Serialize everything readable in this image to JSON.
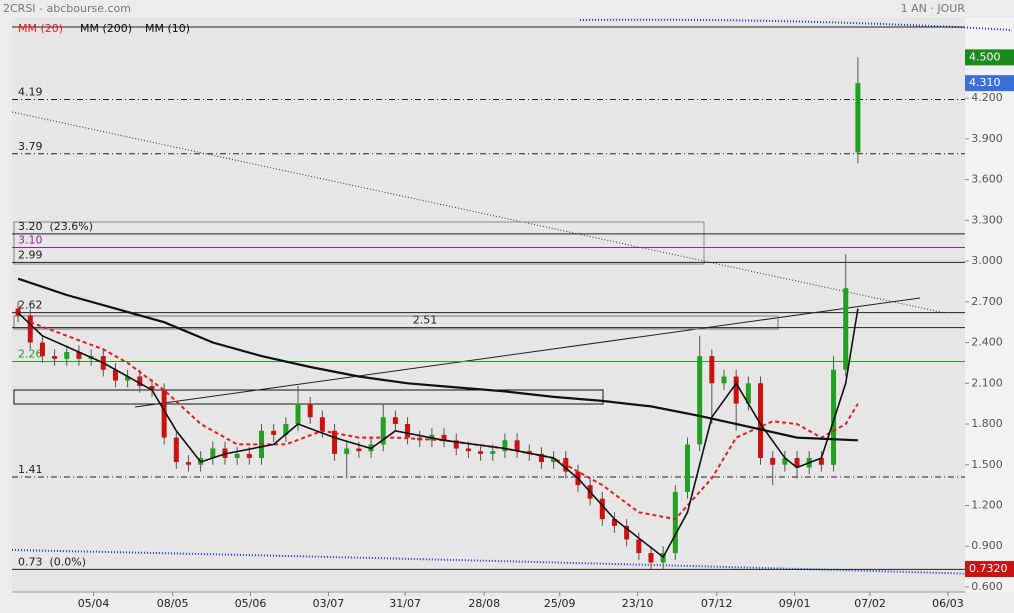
{
  "chart_data": {
    "type": "candlestick",
    "title": "2CRSI - abcbourse.com",
    "subtitle": "1 AN · JOUR",
    "xlim": [
      -0.5,
      77.8
    ],
    "xticks": [
      {
        "value": 6.2,
        "label": "05/04"
      },
      {
        "value": 12.7,
        "label": "08/05"
      },
      {
        "value": 19.1,
        "label": "05/06"
      },
      {
        "value": 25.5,
        "label": "03/07"
      },
      {
        "value": 31.8,
        "label": "31/07"
      },
      {
        "value": 38.3,
        "label": "28/08"
      },
      {
        "value": 44.5,
        "label": "25/09"
      },
      {
        "value": 50.9,
        "label": "23/10"
      },
      {
        "value": 57.4,
        "label": "07/12"
      },
      {
        "value": 63.8,
        "label": "09/01"
      },
      {
        "value": 70.0,
        "label": "07/02"
      },
      {
        "value": 76.4,
        "label": "06/03"
      }
    ],
    "ylim": [
      0.563,
      4.79
    ],
    "yticks": [
      {
        "value": 4.2,
        "label": "4.200"
      },
      {
        "value": 3.9,
        "label": "3.900"
      },
      {
        "value": 3.6,
        "label": "3.600"
      },
      {
        "value": 3.3,
        "label": "3.300"
      },
      {
        "value": 3.0,
        "label": "3.000"
      },
      {
        "value": 2.7,
        "label": "2.700"
      },
      {
        "value": 2.4,
        "label": "2.400"
      },
      {
        "value": 2.1,
        "label": "2.100"
      },
      {
        "value": 1.8,
        "label": "1.800"
      },
      {
        "value": 1.5,
        "label": "1.500"
      },
      {
        "value": 1.2,
        "label": "1.200"
      },
      {
        "value": 0.9,
        "label": "0.900"
      },
      {
        "value": 0.6,
        "label": "0.600"
      }
    ],
    "up_color": "#22a022",
    "down_color": "#cc1111",
    "open": [
      2.65,
      2.6,
      2.4,
      2.3,
      2.28,
      2.33,
      2.28,
      2.3,
      2.2,
      2.12,
      2.15,
      2.08,
      2.05,
      1.7,
      1.52,
      1.5,
      1.55,
      1.62,
      1.55,
      1.58,
      1.55,
      1.75,
      1.72,
      1.8,
      1.95,
      1.85,
      1.75,
      1.58,
      1.62,
      1.6,
      1.65,
      1.85,
      1.8,
      1.7,
      1.68,
      1.72,
      1.68,
      1.62,
      1.6,
      1.58,
      1.6,
      1.68,
      1.6,
      1.58,
      1.52,
      1.55,
      1.45,
      1.35,
      1.25,
      1.1,
      1.05,
      0.95,
      0.85,
      0.78,
      0.85,
      1.3,
      1.65,
      2.3,
      2.1,
      2.15,
      1.95,
      2.1,
      1.55,
      1.5,
      1.55,
      1.48,
      1.55,
      1.5,
      2.2,
      3.8
    ],
    "high": [
      2.7,
      2.65,
      2.45,
      2.35,
      2.38,
      2.38,
      2.35,
      2.35,
      2.25,
      2.2,
      2.2,
      2.13,
      2.1,
      1.75,
      1.57,
      1.6,
      1.67,
      1.67,
      1.63,
      1.63,
      1.8,
      1.8,
      1.85,
      2.08,
      2.0,
      1.9,
      1.8,
      1.67,
      1.67,
      1.7,
      1.95,
      1.9,
      1.85,
      1.75,
      1.77,
      1.77,
      1.73,
      1.67,
      1.65,
      1.65,
      1.73,
      1.73,
      1.65,
      1.63,
      1.6,
      1.6,
      1.5,
      1.4,
      1.3,
      1.15,
      1.1,
      1.0,
      0.9,
      0.9,
      1.35,
      1.7,
      2.45,
      2.35,
      2.2,
      2.2,
      2.15,
      2.15,
      1.6,
      1.6,
      1.6,
      1.6,
      1.6,
      2.3,
      3.05,
      4.5
    ],
    "low": [
      2.55,
      2.35,
      2.25,
      2.23,
      2.23,
      2.23,
      2.23,
      2.15,
      2.07,
      2.07,
      2.03,
      2.0,
      1.65,
      1.47,
      1.45,
      1.45,
      1.5,
      1.5,
      1.5,
      1.5,
      1.5,
      1.67,
      1.67,
      1.75,
      1.8,
      1.7,
      1.53,
      1.4,
      1.55,
      1.55,
      1.6,
      1.75,
      1.65,
      1.63,
      1.63,
      1.63,
      1.57,
      1.55,
      1.53,
      1.53,
      1.55,
      1.55,
      1.53,
      1.47,
      1.47,
      1.4,
      1.3,
      1.2,
      1.05,
      1.0,
      0.9,
      0.8,
      0.73,
      0.73,
      0.8,
      1.25,
      1.6,
      1.8,
      2.05,
      1.75,
      1.9,
      1.5,
      1.35,
      1.45,
      1.4,
      1.43,
      1.45,
      1.45,
      2.15,
      3.72
    ],
    "close": [
      2.6,
      2.4,
      2.3,
      2.28,
      2.33,
      2.28,
      2.3,
      2.2,
      2.12,
      2.15,
      2.08,
      2.05,
      1.7,
      1.52,
      1.5,
      1.55,
      1.62,
      1.55,
      1.58,
      1.55,
      1.75,
      1.72,
      1.8,
      1.95,
      1.85,
      1.75,
      1.58,
      1.62,
      1.6,
      1.65,
      1.85,
      1.8,
      1.7,
      1.68,
      1.72,
      1.68,
      1.62,
      1.6,
      1.58,
      1.6,
      1.68,
      1.6,
      1.58,
      1.52,
      1.55,
      1.45,
      1.35,
      1.25,
      1.1,
      1.05,
      0.95,
      0.85,
      0.78,
      0.85,
      1.3,
      1.65,
      2.3,
      2.1,
      2.15,
      1.95,
      2.1,
      1.55,
      1.5,
      1.55,
      1.48,
      1.55,
      1.5,
      2.2,
      2.8,
      4.31
    ],
    "series": [
      {
        "name": "MM (20)",
        "color": "#e02020",
        "dash": "4 3",
        "width": 2,
        "x": [
          1,
          4,
          7,
          9,
          12,
          15,
          18,
          22,
          25,
          28,
          31,
          35,
          40,
          44,
          48,
          51,
          54,
          57,
          59,
          62,
          64,
          66,
          68,
          69
        ],
        "values": [
          2.55,
          2.45,
          2.35,
          2.25,
          2.05,
          1.8,
          1.65,
          1.65,
          1.75,
          1.7,
          1.7,
          1.68,
          1.62,
          1.55,
          1.35,
          1.15,
          1.1,
          1.4,
          1.7,
          1.82,
          1.8,
          1.7,
          1.8,
          1.95
        ]
      },
      {
        "name": "MM (200)",
        "color": "#111111",
        "dash": "",
        "width": 2.2,
        "x": [
          0,
          4,
          8,
          12,
          16,
          20,
          24,
          28,
          32,
          36,
          40,
          44,
          48,
          52,
          56,
          60,
          64,
          69
        ],
        "values": [
          2.87,
          2.75,
          2.65,
          2.55,
          2.4,
          2.3,
          2.22,
          2.15,
          2.1,
          2.07,
          2.04,
          2.0,
          1.97,
          1.93,
          1.86,
          1.78,
          1.7,
          1.68
        ]
      },
      {
        "name": "MM (10)",
        "color": "#111111",
        "dash": "",
        "width": 1.6,
        "x": [
          0,
          2,
          7,
          11,
          13,
          15,
          17,
          21,
          23,
          26,
          29,
          31,
          35,
          40,
          44,
          46,
          49,
          53,
          55,
          57,
          59,
          61,
          63,
          64,
          66,
          68,
          69
        ],
        "values": [
          2.62,
          2.45,
          2.25,
          2.05,
          1.75,
          1.52,
          1.58,
          1.65,
          1.8,
          1.7,
          1.62,
          1.75,
          1.68,
          1.62,
          1.55,
          1.4,
          1.1,
          0.82,
          1.15,
          1.85,
          2.1,
          1.8,
          1.55,
          1.48,
          1.55,
          2.1,
          2.65
        ]
      }
    ],
    "levels": [
      {
        "value": 4.19,
        "label": "4.19",
        "color": "#222222",
        "style": "dashdot"
      },
      {
        "value": 3.79,
        "label": "3.79",
        "color": "#222222",
        "style": "dashdot"
      },
      {
        "value": 3.2,
        "label": "3.20  (23.6%)",
        "color": "#222222",
        "style": "solid"
      },
      {
        "value": 3.1,
        "label": "3.10",
        "color": "#9b1fa0",
        "style": "solid"
      },
      {
        "value": 2.99,
        "label": "2.99",
        "color": "#222222",
        "style": "solid"
      },
      {
        "value": 2.62,
        "label": "2.62",
        "color": "#222222",
        "style": "solid"
      },
      {
        "value": 2.51,
        "label": "2.51",
        "color": "#222222",
        "style": "solid"
      },
      {
        "value": 2.26,
        "label": "2.26",
        "color": "#2a9a2a",
        "style": "solid"
      },
      {
        "value": 1.41,
        "label": "1.41",
        "color": "#222222",
        "style": "dashdot"
      },
      {
        "value": 0.73,
        "label": "0.73  (0.0%)",
        "color": "#222222",
        "style": "solid"
      }
    ],
    "price_tags": [
      {
        "value": 4.5,
        "label": "4.500",
        "color": "#1a8a1a"
      },
      {
        "value": 4.31,
        "label": "4.310",
        "color": "#3a6fd8"
      },
      {
        "value": 0.732,
        "label": "0.7320",
        "color": "#cc1111"
      }
    ]
  }
}
